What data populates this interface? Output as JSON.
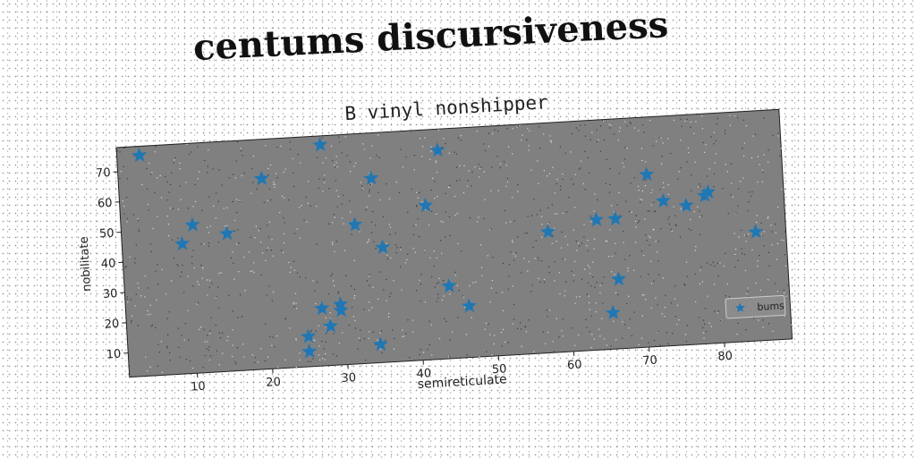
{
  "page": {
    "title": "centums discursiveness"
  },
  "chart_data": {
    "type": "scatter",
    "title": "B vinyl nonshipper",
    "xlabel": "semireticulate",
    "ylabel": "nobilitate",
    "xlim": [
      1,
      89
    ],
    "ylim": [
      2,
      78
    ],
    "xticks": [
      10,
      20,
      30,
      40,
      50,
      60,
      70,
      80
    ],
    "yticks": [
      10,
      20,
      30,
      40,
      50,
      60,
      70
    ],
    "grid": false,
    "legend_position": "lower-right",
    "colors": {
      "axes_background": "#808080",
      "marker": "#1f77b4",
      "text": "#222222"
    },
    "series": [
      {
        "name": "bums",
        "marker": "star",
        "points": [
          [
            4,
            75
          ],
          [
            9,
            45
          ],
          [
            10.5,
            51
          ],
          [
            15,
            47.5
          ],
          [
            20,
            65
          ],
          [
            28,
            75
          ],
          [
            32,
            48
          ],
          [
            34.5,
            63
          ],
          [
            35.5,
            40
          ],
          [
            27,
            21
          ],
          [
            28,
            15
          ],
          [
            29.5,
            22
          ],
          [
            29.5,
            20
          ],
          [
            25,
            12
          ],
          [
            25,
            7
          ],
          [
            34.5,
            8
          ],
          [
            41.5,
            53
          ],
          [
            43.5,
            71
          ],
          [
            44,
            26
          ],
          [
            46.5,
            19
          ],
          [
            57.5,
            42
          ],
          [
            64,
            45
          ],
          [
            66.5,
            45
          ],
          [
            66.5,
            25
          ],
          [
            65.5,
            14
          ],
          [
            71,
            59
          ],
          [
            73,
            50
          ],
          [
            76,
            48
          ],
          [
            78.5,
            51
          ],
          [
            79,
            52
          ],
          [
            85,
            38
          ]
        ]
      }
    ]
  }
}
